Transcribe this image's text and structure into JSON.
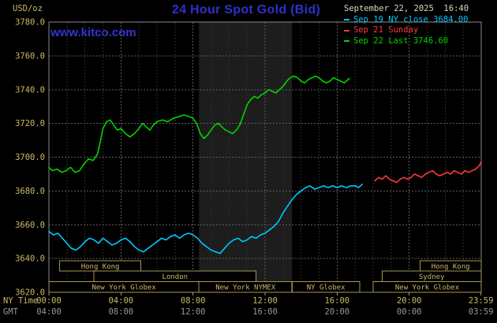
{
  "header": {
    "units": "USD/oz",
    "title": "24 Hour Spot Gold (Bid)",
    "datetime": "September 22, 2025  16:40",
    "watermark": "www.kitco.com"
  },
  "legend": [
    {
      "id": "sep19",
      "label": "Sep 19 NY close 3684.00",
      "color": "#00c8ff"
    },
    {
      "id": "sep21",
      "label": "Sep 21 Sunday",
      "color": "#ff3838"
    },
    {
      "id": "sep22",
      "label": "Sep 22 Last 3746.60",
      "color": "#00d400"
    }
  ],
  "axes": {
    "ny_label": "NY Time",
    "gmt_label": "GMT",
    "ny_ticks": [
      "00:00",
      "04:00",
      "08:00",
      "12:00",
      "16:00",
      "20:00",
      "23:59"
    ],
    "gmt_ticks": [
      "04:00",
      "08:00",
      "12:00",
      "16:00",
      "20:00",
      "00:00",
      "03:59"
    ],
    "tick_hours": [
      0,
      4,
      8,
      12,
      16,
      20,
      23.983
    ],
    "y_ticks": [
      "3780.0",
      "3760.0",
      "3740.0",
      "3720.0",
      "3700.0",
      "3680.0",
      "3660.0",
      "3640.0",
      "3620.0"
    ]
  },
  "sessions": [
    {
      "row": 0,
      "label": "Hong Kong",
      "start": 0.6,
      "end": 5.1
    },
    {
      "row": 0,
      "label": "Hong Kong",
      "start": 20.6,
      "end": 24
    },
    {
      "row": 1,
      "label": "London",
      "start": 2.5,
      "end": 11.5
    },
    {
      "row": 1,
      "label": "Sydney",
      "start": 18.5,
      "end": 24
    },
    {
      "row": 2,
      "label": "New York Globex",
      "start": 0,
      "end": 8.33
    },
    {
      "row": 2,
      "label": "New York NYMEX",
      "start": 8.33,
      "end": 13.5
    },
    {
      "row": 2,
      "label": "NY Globex",
      "start": 13.5,
      "end": 17.25
    },
    {
      "row": 2,
      "label": "New York Globex",
      "start": 18,
      "end": 24
    }
  ],
  "chart_data": {
    "type": "line",
    "title": "24 Hour Spot Gold (Bid)",
    "xlabel": "NY Time",
    "ylabel": "USD/oz",
    "xlim": [
      0,
      24
    ],
    "ylim": [
      3620,
      3780
    ],
    "y_step": 20,
    "grid": true,
    "legend_position": "top-right",
    "background": "#000000",
    "nymex_band_hours": [
      8.33,
      13.5
    ],
    "series": [
      {
        "id": "sep19",
        "name": "Sep 19 NY close",
        "color": "#00c8ff",
        "points": [
          [
            0,
            3656
          ],
          [
            0.25,
            3654
          ],
          [
            0.5,
            3655
          ],
          [
            0.75,
            3652
          ],
          [
            1,
            3649
          ],
          [
            1.25,
            3646
          ],
          [
            1.5,
            3645
          ],
          [
            1.75,
            3647
          ],
          [
            2,
            3650
          ],
          [
            2.25,
            3652
          ],
          [
            2.5,
            3651
          ],
          [
            2.75,
            3649
          ],
          [
            3,
            3652
          ],
          [
            3.25,
            3650
          ],
          [
            3.5,
            3648
          ],
          [
            3.75,
            3649
          ],
          [
            4,
            3651
          ],
          [
            4.25,
            3652
          ],
          [
            4.5,
            3650
          ],
          [
            4.75,
            3647
          ],
          [
            5,
            3645
          ],
          [
            5.25,
            3644
          ],
          [
            5.5,
            3646
          ],
          [
            5.75,
            3648
          ],
          [
            6,
            3650
          ],
          [
            6.25,
            3652
          ],
          [
            6.5,
            3651
          ],
          [
            6.75,
            3653
          ],
          [
            7,
            3654
          ],
          [
            7.25,
            3652
          ],
          [
            7.5,
            3654
          ],
          [
            7.75,
            3655
          ],
          [
            8,
            3654
          ],
          [
            8.25,
            3652
          ],
          [
            8.5,
            3649
          ],
          [
            8.75,
            3647
          ],
          [
            9,
            3645
          ],
          [
            9.25,
            3644
          ],
          [
            9.5,
            3643
          ],
          [
            9.75,
            3646
          ],
          [
            10,
            3649
          ],
          [
            10.25,
            3651
          ],
          [
            10.5,
            3652
          ],
          [
            10.75,
            3650
          ],
          [
            11,
            3651
          ],
          [
            11.25,
            3653
          ],
          [
            11.5,
            3652
          ],
          [
            11.75,
            3654
          ],
          [
            12,
            3655
          ],
          [
            12.25,
            3657
          ],
          [
            12.5,
            3659
          ],
          [
            12.75,
            3662
          ],
          [
            13,
            3667
          ],
          [
            13.25,
            3671
          ],
          [
            13.5,
            3675
          ],
          [
            13.75,
            3678
          ],
          [
            14,
            3680
          ],
          [
            14.25,
            3682
          ],
          [
            14.5,
            3683
          ],
          [
            14.75,
            3681
          ],
          [
            15,
            3682
          ],
          [
            15.25,
            3683
          ],
          [
            15.5,
            3682
          ],
          [
            15.75,
            3683
          ],
          [
            16,
            3682
          ],
          [
            16.25,
            3683
          ],
          [
            16.5,
            3682
          ],
          [
            16.75,
            3683
          ],
          [
            17,
            3683
          ],
          [
            17.2,
            3682
          ],
          [
            17.4,
            3684
          ]
        ]
      },
      {
        "id": "sep21",
        "name": "Sep 21 Sunday",
        "color": "#ff3838",
        "points": [
          [
            18.1,
            3686
          ],
          [
            18.3,
            3688
          ],
          [
            18.5,
            3687
          ],
          [
            18.7,
            3689
          ],
          [
            18.9,
            3687
          ],
          [
            19.1,
            3686
          ],
          [
            19.3,
            3685
          ],
          [
            19.5,
            3687
          ],
          [
            19.7,
            3688
          ],
          [
            19.9,
            3687
          ],
          [
            20.1,
            3688
          ],
          [
            20.3,
            3690
          ],
          [
            20.5,
            3689
          ],
          [
            20.7,
            3688
          ],
          [
            20.9,
            3690
          ],
          [
            21.1,
            3691
          ],
          [
            21.3,
            3692
          ],
          [
            21.5,
            3690
          ],
          [
            21.7,
            3689
          ],
          [
            21.9,
            3690
          ],
          [
            22.1,
            3691
          ],
          [
            22.3,
            3690
          ],
          [
            22.5,
            3692
          ],
          [
            22.7,
            3691
          ],
          [
            22.9,
            3690
          ],
          [
            23.1,
            3692
          ],
          [
            23.3,
            3691
          ],
          [
            23.5,
            3692
          ],
          [
            23.7,
            3693
          ],
          [
            23.9,
            3695
          ],
          [
            23.98,
            3697
          ]
        ]
      },
      {
        "id": "sep22",
        "name": "Sep 22 Last",
        "color": "#00d400",
        "points": [
          [
            0,
            3694
          ],
          [
            0.2,
            3692
          ],
          [
            0.45,
            3693
          ],
          [
            0.7,
            3691
          ],
          [
            0.95,
            3692
          ],
          [
            1.2,
            3694
          ],
          [
            1.45,
            3691
          ],
          [
            1.7,
            3692
          ],
          [
            1.95,
            3696
          ],
          [
            2.2,
            3699
          ],
          [
            2.45,
            3698
          ],
          [
            2.7,
            3702
          ],
          [
            2.85,
            3709
          ],
          [
            3,
            3717
          ],
          [
            3.2,
            3721
          ],
          [
            3.4,
            3722
          ],
          [
            3.6,
            3719
          ],
          [
            3.8,
            3716
          ],
          [
            4,
            3717
          ],
          [
            4.25,
            3714
          ],
          [
            4.5,
            3712
          ],
          [
            4.75,
            3714
          ],
          [
            5,
            3717
          ],
          [
            5.2,
            3720
          ],
          [
            5.4,
            3718
          ],
          [
            5.6,
            3716
          ],
          [
            5.8,
            3719
          ],
          [
            6,
            3721
          ],
          [
            6.3,
            3722
          ],
          [
            6.6,
            3721
          ],
          [
            6.9,
            3723
          ],
          [
            7.2,
            3724
          ],
          [
            7.5,
            3725
          ],
          [
            7.8,
            3724
          ],
          [
            8,
            3723
          ],
          [
            8.2,
            3720
          ],
          [
            8.4,
            3714
          ],
          [
            8.6,
            3711
          ],
          [
            8.8,
            3713
          ],
          [
            9,
            3716
          ],
          [
            9.2,
            3719
          ],
          [
            9.4,
            3720
          ],
          [
            9.6,
            3718
          ],
          [
            9.8,
            3716
          ],
          [
            10,
            3715
          ],
          [
            10.2,
            3714
          ],
          [
            10.4,
            3716
          ],
          [
            10.6,
            3719
          ],
          [
            10.8,
            3725
          ],
          [
            11,
            3731
          ],
          [
            11.2,
            3734
          ],
          [
            11.4,
            3736
          ],
          [
            11.6,
            3735
          ],
          [
            11.8,
            3737
          ],
          [
            12,
            3738
          ],
          [
            12.2,
            3740
          ],
          [
            12.4,
            3739
          ],
          [
            12.6,
            3738
          ],
          [
            12.8,
            3740
          ],
          [
            13,
            3742
          ],
          [
            13.2,
            3745
          ],
          [
            13.4,
            3747
          ],
          [
            13.6,
            3748
          ],
          [
            13.8,
            3747
          ],
          [
            14,
            3745
          ],
          [
            14.2,
            3744
          ],
          [
            14.4,
            3746
          ],
          [
            14.6,
            3747
          ],
          [
            14.8,
            3748
          ],
          [
            15,
            3747
          ],
          [
            15.2,
            3745
          ],
          [
            15.4,
            3744
          ],
          [
            15.6,
            3745
          ],
          [
            15.8,
            3747
          ],
          [
            16,
            3746
          ],
          [
            16.2,
            3745
          ],
          [
            16.4,
            3744
          ],
          [
            16.67,
            3746.6
          ]
        ]
      }
    ]
  }
}
